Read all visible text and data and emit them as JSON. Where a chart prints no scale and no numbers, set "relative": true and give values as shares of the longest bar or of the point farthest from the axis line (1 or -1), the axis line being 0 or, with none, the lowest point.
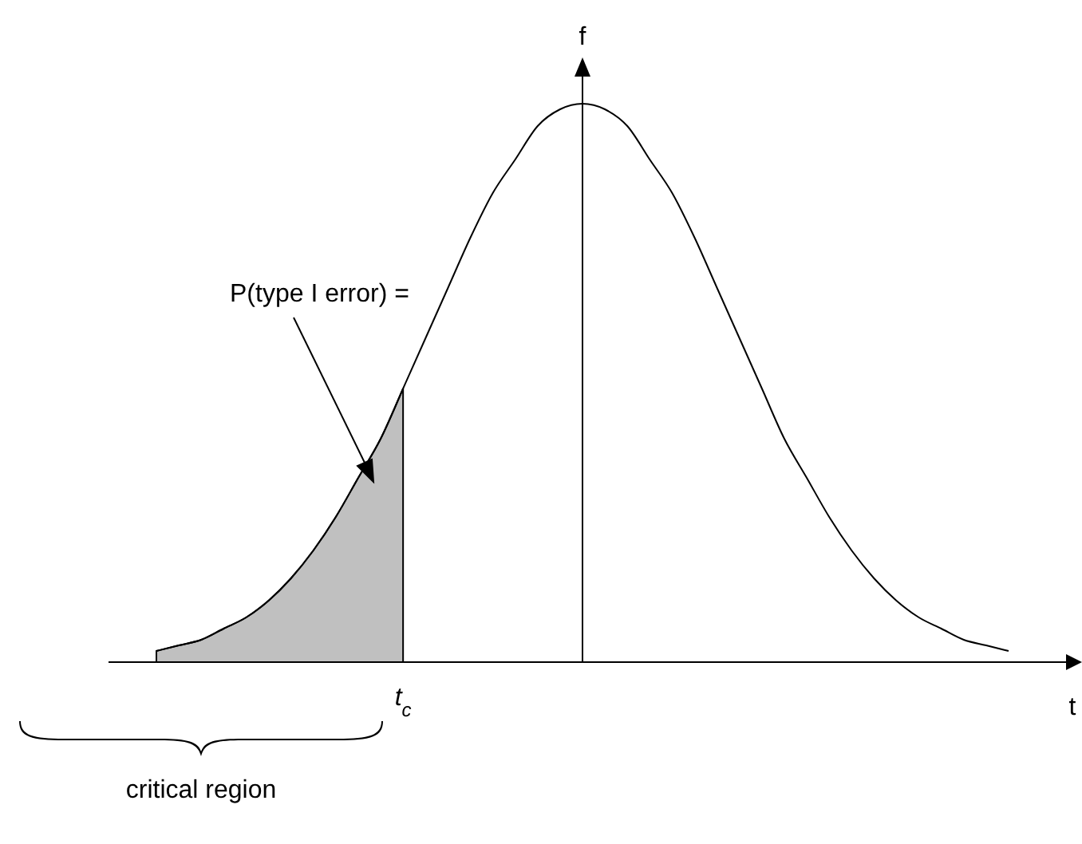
{
  "chart_data": {
    "type": "line",
    "relative": true,
    "xlabel": "t",
    "ylabel": "f",
    "categories": [
      null,
      null,
      null,
      null,
      null,
      null,
      null,
      null,
      null,
      null,
      null,
      null,
      null,
      null,
      null,
      null,
      null,
      null,
      null,
      null,
      null,
      null,
      null,
      null,
      null,
      null,
      null,
      null,
      null,
      null,
      null,
      null,
      null,
      null,
      null,
      null,
      null,
      null,
      null
    ],
    "series": [
      {
        "type": "area",
        "color": "#c0c0c0",
        "values": [
          0.02,
          0.03,
          0.04,
          0.06,
          0.08,
          0.11,
          0.15,
          0.2,
          0.26,
          0.33,
          0.4,
          0.49,
          null,
          null,
          null,
          null,
          null,
          null,
          null,
          null,
          null,
          null,
          null,
          null,
          null,
          null,
          null,
          null,
          null,
          null,
          null,
          null,
          null,
          null,
          null,
          null,
          null,
          null,
          null
        ]
      },
      {
        "color": "#000000",
        "values": [
          0.02,
          0.03,
          0.04,
          0.06,
          0.08,
          0.11,
          0.15,
          0.2,
          0.26,
          0.33,
          0.4,
          0.49,
          0.58,
          0.67,
          0.76,
          0.84,
          0.9,
          0.96,
          0.99,
          1,
          0.99,
          0.96,
          0.9,
          0.84,
          0.76,
          0.67,
          0.58,
          0.49,
          0.4,
          0.33,
          0.26,
          0.2,
          0.15,
          0.11,
          0.08,
          0.06,
          0.04,
          0.03,
          0.02
        ]
      }
    ],
    "annotations": [
      "P(type I error) =",
      "t$_{c}$",
      "critical region"
    ]
  }
}
